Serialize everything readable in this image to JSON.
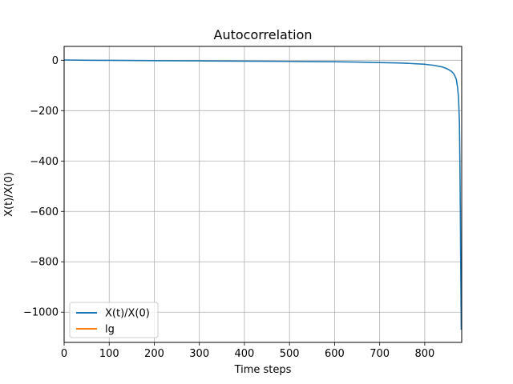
{
  "chart_data": {
    "type": "line",
    "title": "Autocorrelation",
    "xlabel": "Time steps",
    "ylabel": "X(t)/X(0)",
    "xlim": [
      0,
      882
    ],
    "ylim": [
      -1120,
      55
    ],
    "x_ticks": [
      0,
      100,
      200,
      300,
      400,
      500,
      600,
      700,
      800
    ],
    "y_ticks": [
      0,
      -200,
      -400,
      -600,
      -800,
      -1000
    ],
    "y_tick_labels": [
      "0",
      "−200",
      "−400",
      "−600",
      "−800",
      "−1000"
    ],
    "grid": true,
    "legend_position": "lower-left",
    "series": [
      {
        "name": "X(t)/X(0)",
        "color": "#1f77b4",
        "x": [
          0,
          50,
          100,
          200,
          300,
          400,
          500,
          600,
          650,
          700,
          750,
          800,
          820,
          840,
          850,
          860,
          865,
          870,
          873,
          875,
          877,
          878,
          879,
          880,
          881
        ],
        "y": [
          1,
          0,
          -0.5,
          -1.5,
          -2.5,
          -3.5,
          -4.5,
          -6,
          -7,
          -9,
          -11,
          -16,
          -20,
          -27,
          -34,
          -45,
          -55,
          -75,
          -110,
          -150,
          -250,
          -400,
          -600,
          -850,
          -1070
        ]
      },
      {
        "name": "lg",
        "color": "#ff7f0e",
        "x": [],
        "y": []
      }
    ]
  }
}
